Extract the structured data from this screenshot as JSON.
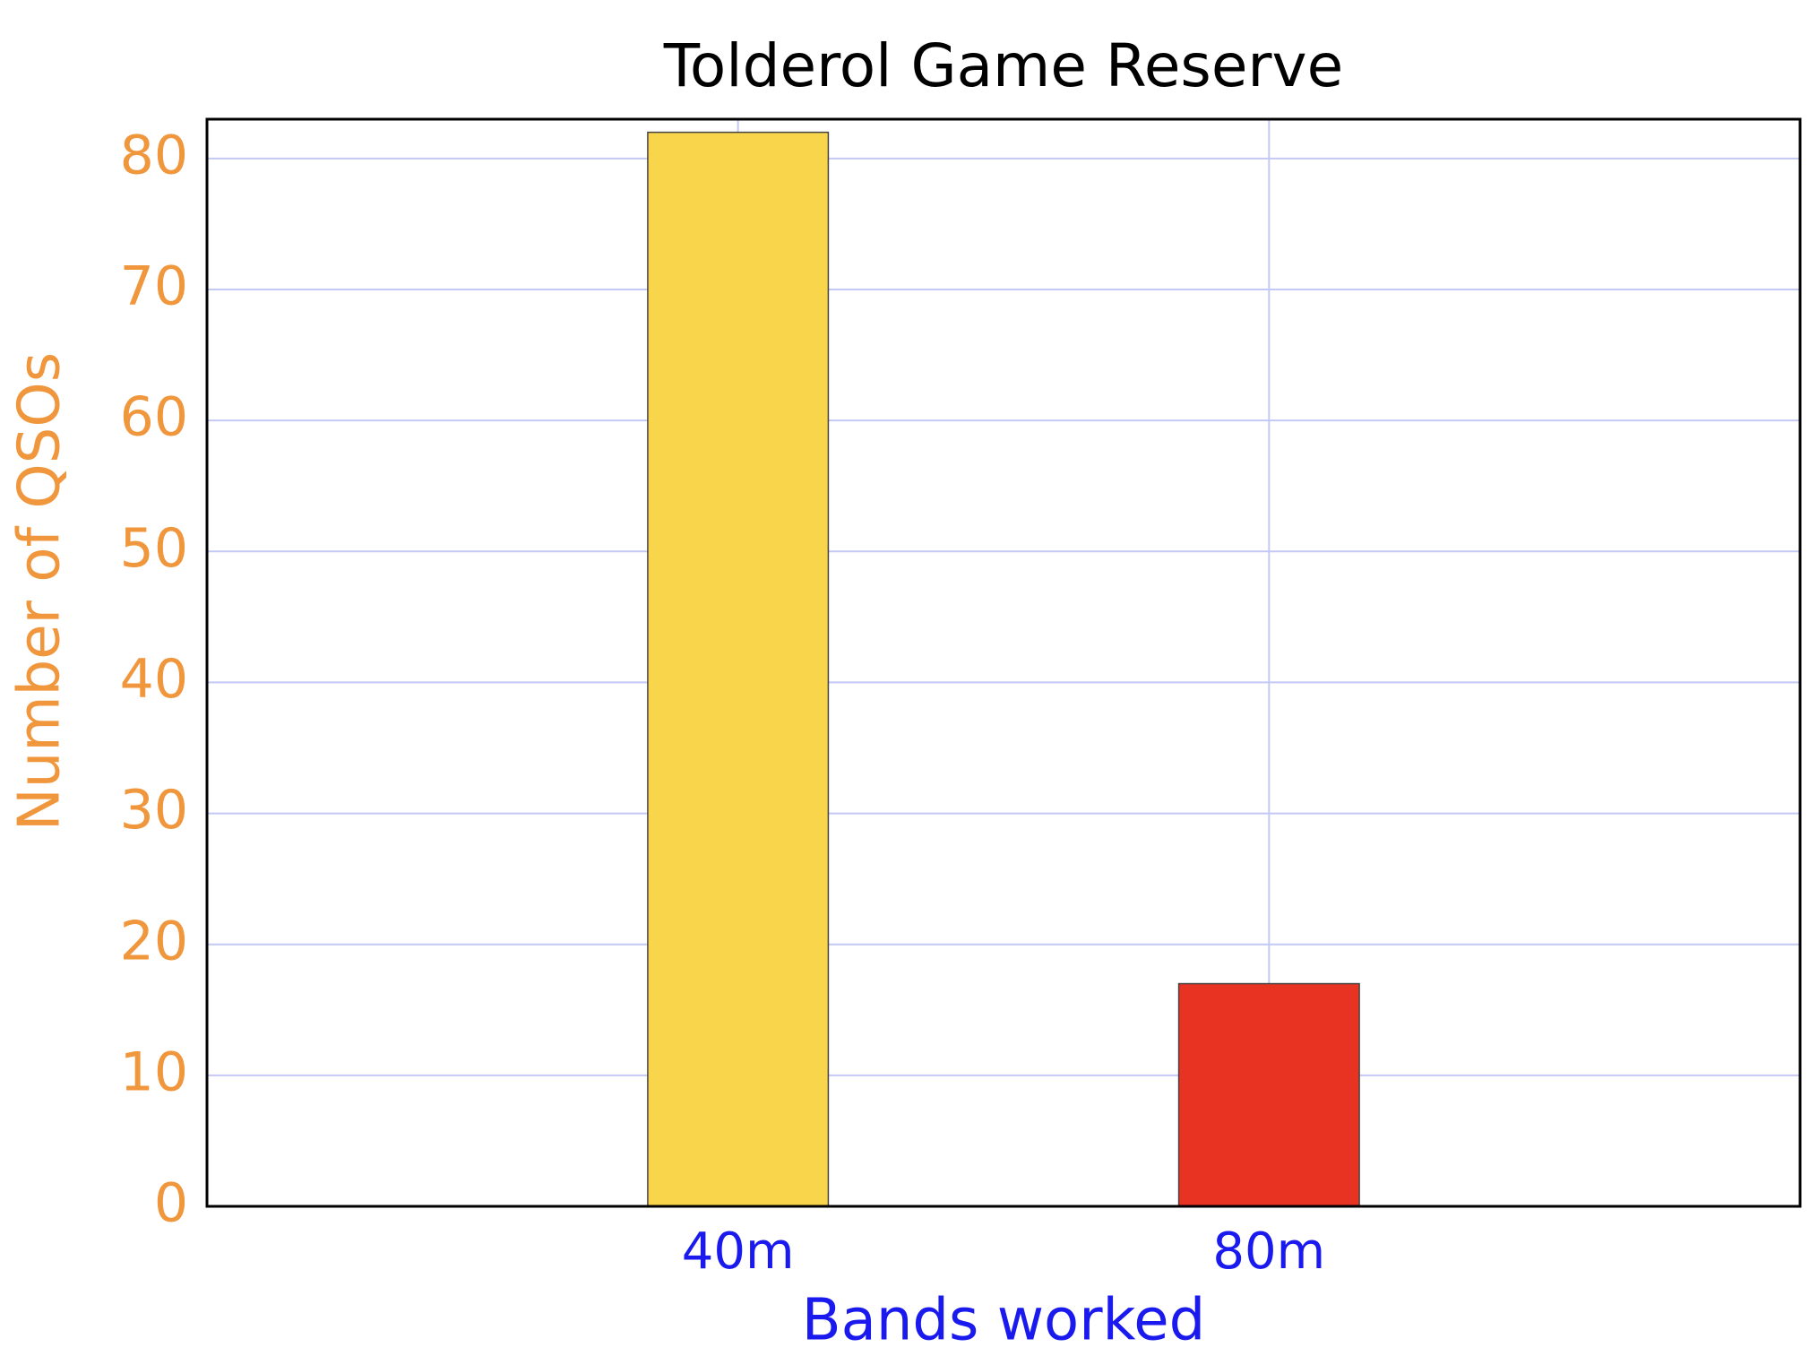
{
  "chart_data": {
    "type": "bar",
    "title": "Tolderol Game Reserve",
    "x_label": "Bands worked",
    "y_label": "Number of QSOs",
    "categories": [
      "40m",
      "80m"
    ],
    "values": [
      82,
      17
    ],
    "colors": [
      "#f8d54a",
      "#e83222"
    ],
    "ylim": [
      0,
      83
    ],
    "yticks": [
      0,
      10,
      20,
      30,
      40,
      50,
      60,
      70,
      80
    ],
    "grid": true
  }
}
